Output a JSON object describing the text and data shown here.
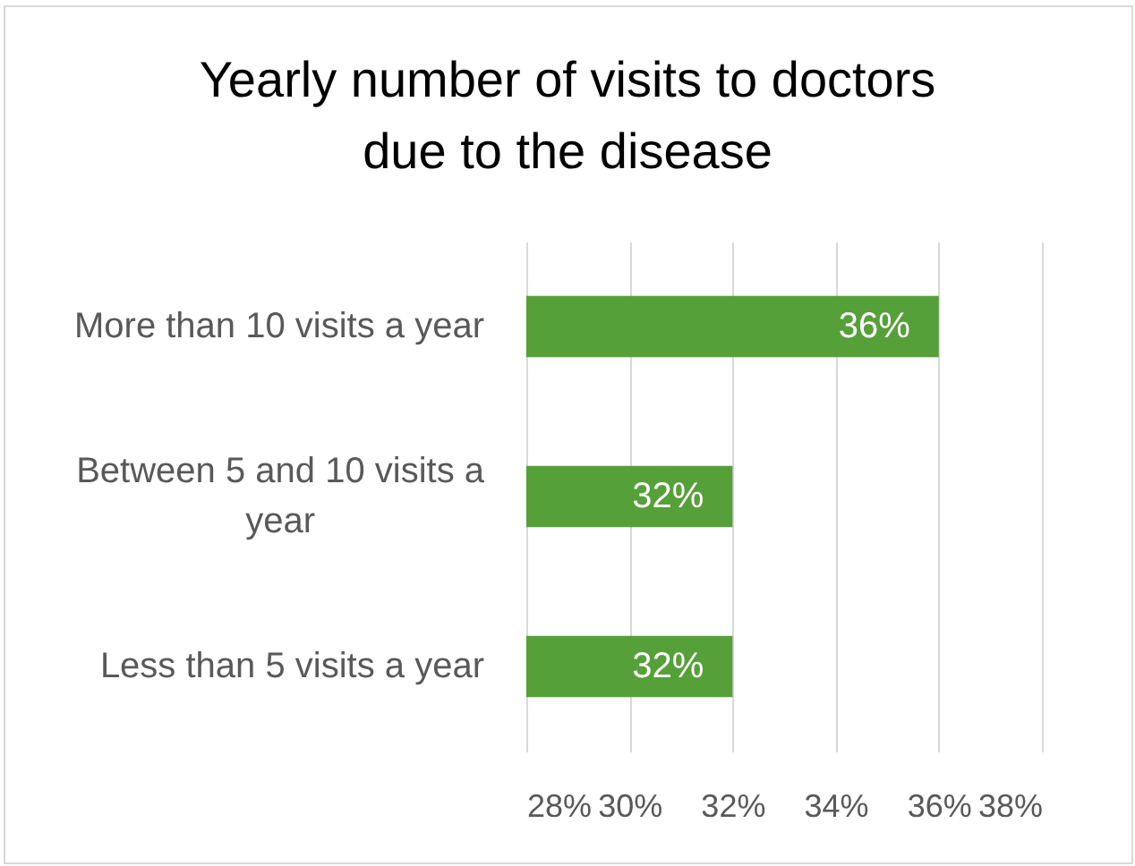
{
  "chart_data": {
    "type": "bar",
    "orientation": "horizontal",
    "title": "Yearly number of visits to doctors due to the disease",
    "categories": [
      "More than 10 visits a year",
      "Between 5 and 10 visits a year",
      "Less than 5 visits a year"
    ],
    "values": [
      36,
      32,
      32
    ],
    "value_labels": [
      "36%",
      "32%",
      "32%"
    ],
    "color": "#56a03a",
    "xlim": [
      28,
      38
    ],
    "xticks": [
      {
        "value": 28,
        "label": "28%"
      },
      {
        "value": 30,
        "label": "30%"
      },
      {
        "value": 32,
        "label": "32%"
      },
      {
        "value": 34,
        "label": "34%"
      },
      {
        "value": 36,
        "label": "36%"
      },
      {
        "value": 38,
        "label": "38%"
      }
    ],
    "grid": "x"
  }
}
